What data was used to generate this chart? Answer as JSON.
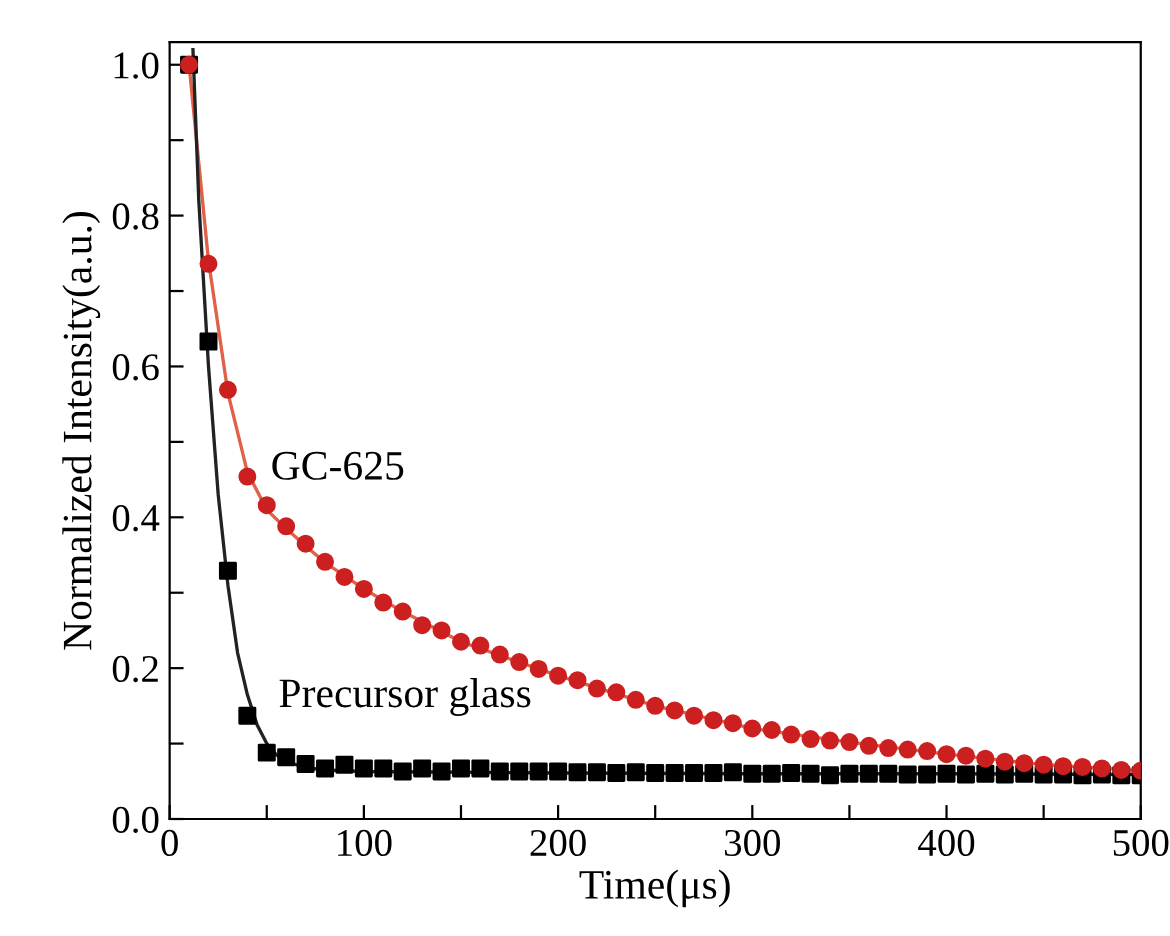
{
  "chart_data": {
    "type": "scatter",
    "xlabel": "Time(μs)",
    "ylabel": "Normalized Intensity(a.u.)",
    "xlim": [
      0,
      500
    ],
    "ylim": [
      0,
      1.03
    ],
    "xticks": [
      0,
      {
        "value": 50,
        "label": null
      },
      100,
      {
        "value": 150,
        "label": null
      },
      200,
      {
        "value": 250,
        "label": null
      },
      300,
      {
        "value": 350,
        "label": null
      },
      400,
      {
        "value": 450,
        "label": null
      },
      500
    ],
    "yticks": [
      {
        "value": 0,
        "label": "0.0"
      },
      {
        "value": 0.1,
        "label": null
      },
      {
        "value": 0.2,
        "label": "0.2"
      },
      {
        "value": 0.3,
        "label": null
      },
      {
        "value": 0.4,
        "label": "0.4"
      },
      {
        "value": 0.5,
        "label": null
      },
      {
        "value": 0.6,
        "label": "0.6"
      },
      {
        "value": 0.7,
        "label": null
      },
      {
        "value": 0.8,
        "label": "0.8"
      },
      {
        "value": 0.9,
        "label": null
      },
      {
        "value": 1.0,
        "label": "1.0"
      }
    ],
    "grid": false,
    "legend": false,
    "annotations": [
      "GC-625",
      "Precursor glass"
    ],
    "series": [
      {
        "type": "line",
        "color": "#e06048",
        "marker": "none",
        "x": [
          10,
          20,
          30,
          40,
          50,
          60,
          70,
          80,
          100,
          120,
          150,
          200,
          250,
          300,
          350,
          400,
          450,
          500
        ],
        "values": [
          1.0,
          0.74,
          0.565,
          0.46,
          0.41,
          0.385,
          0.362,
          0.34,
          0.305,
          0.275,
          0.235,
          0.19,
          0.15,
          0.12,
          0.102,
          0.086,
          0.072,
          0.064
        ]
      },
      {
        "type": "line",
        "color": "#222222",
        "marker": "none",
        "x": [
          12,
          15,
          20,
          25,
          30,
          35,
          40,
          45,
          50,
          55,
          60,
          70,
          80,
          100,
          150,
          200,
          300,
          400,
          500
        ],
        "values": [
          1.02,
          0.82,
          0.6,
          0.43,
          0.31,
          0.22,
          0.165,
          0.125,
          0.1,
          0.085,
          0.076,
          0.068,
          0.065,
          0.063,
          0.062,
          0.061,
          0.06,
          0.06,
          0.059
        ]
      },
      {
        "color": "#cc2020",
        "marker": "circle",
        "x": [
          10,
          20,
          30,
          40,
          50,
          60,
          70,
          80,
          90,
          100,
          110,
          120,
          130,
          140,
          150,
          160,
          170,
          180,
          190,
          200,
          210,
          220,
          230,
          240,
          250,
          260,
          270,
          280,
          290,
          300,
          310,
          320,
          330,
          340,
          350,
          360,
          370,
          380,
          390,
          400,
          410,
          420,
          430,
          440,
          450,
          460,
          470,
          480,
          490,
          500
        ],
        "values": [
          1.0,
          0.736,
          0.569,
          0.454,
          0.416,
          0.388,
          0.365,
          0.341,
          0.321,
          0.305,
          0.287,
          0.275,
          0.257,
          0.25,
          0.235,
          0.23,
          0.218,
          0.208,
          0.199,
          0.19,
          0.184,
          0.173,
          0.168,
          0.158,
          0.15,
          0.144,
          0.137,
          0.131,
          0.127,
          0.12,
          0.118,
          0.112,
          0.106,
          0.104,
          0.102,
          0.097,
          0.094,
          0.092,
          0.09,
          0.086,
          0.084,
          0.08,
          0.076,
          0.074,
          0.072,
          0.07,
          0.069,
          0.067,
          0.065,
          0.064
        ]
      },
      {
        "color": "#000000",
        "marker": "square",
        "x": [
          10,
          20,
          30,
          40,
          50,
          60,
          70,
          80,
          90,
          100,
          110,
          120,
          130,
          140,
          150,
          160,
          170,
          180,
          190,
          200,
          210,
          220,
          230,
          240,
          250,
          260,
          270,
          280,
          290,
          300,
          310,
          320,
          330,
          340,
          350,
          360,
          370,
          380,
          390,
          400,
          410,
          420,
          430,
          440,
          450,
          460,
          470,
          480,
          490,
          500
        ],
        "values": [
          1.0,
          0.633,
          0.329,
          0.137,
          0.088,
          0.082,
          0.073,
          0.067,
          0.072,
          0.067,
          0.067,
          0.063,
          0.067,
          0.063,
          0.067,
          0.067,
          0.063,
          0.063,
          0.063,
          0.063,
          0.062,
          0.062,
          0.061,
          0.062,
          0.061,
          0.061,
          0.061,
          0.061,
          0.062,
          0.06,
          0.06,
          0.061,
          0.06,
          0.058,
          0.06,
          0.06,
          0.06,
          0.059,
          0.059,
          0.06,
          0.059,
          0.06,
          0.059,
          0.06,
          0.059,
          0.059,
          0.058,
          0.059,
          0.058,
          0.058
        ]
      }
    ]
  }
}
